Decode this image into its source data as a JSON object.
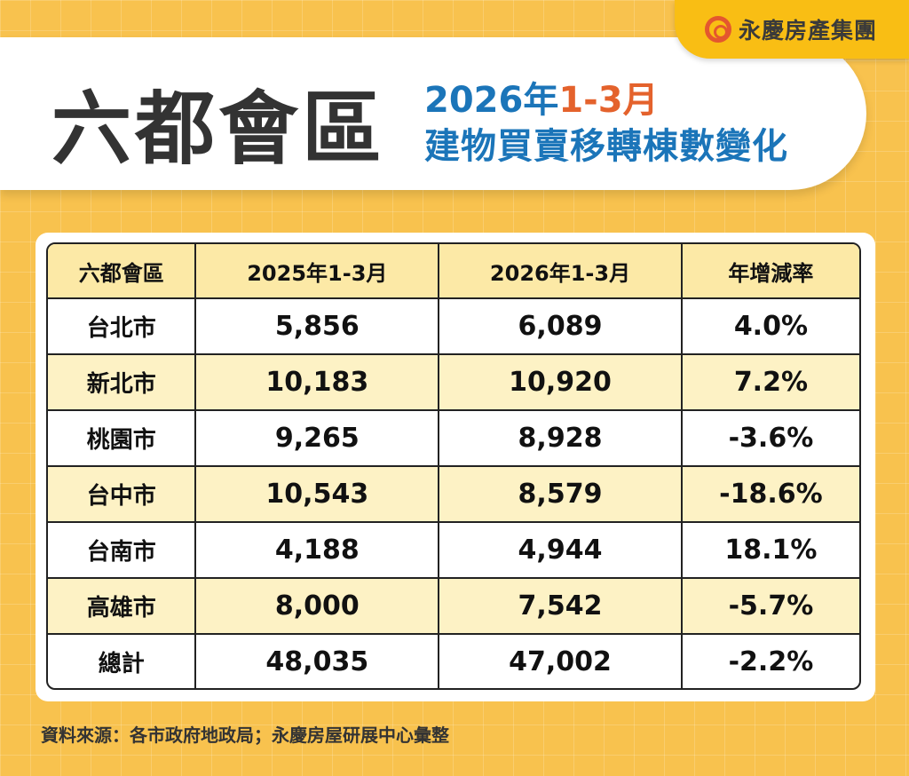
{
  "brand": {
    "logo_text": "永慶房產集團",
    "accent": "#E4572E"
  },
  "header": {
    "title": "六都會區",
    "subtitle_year": "2026年",
    "subtitle_period": "1-3月",
    "subtitle_line2": "建物買賣移轉棟數變化"
  },
  "chart_data": {
    "type": "table",
    "columns": [
      "六都會區",
      "2025年1-3月",
      "2026年1-3月",
      "年增減率"
    ],
    "rows": [
      [
        "台北市",
        "5,856",
        "6,089",
        "4.0%"
      ],
      [
        "新北市",
        "10,183",
        "10,920",
        "7.2%"
      ],
      [
        "桃園市",
        "9,265",
        "8,928",
        "-3.6%"
      ],
      [
        "台中市",
        "10,543",
        "8,579",
        "-18.6%"
      ],
      [
        "台南市",
        "4,188",
        "4,944",
        "18.1%"
      ],
      [
        "高雄市",
        "8,000",
        "7,542",
        "-5.7%"
      ],
      [
        "總計",
        "48,035",
        "47,002",
        "-2.2%"
      ]
    ]
  },
  "footer": {
    "source": "資料來源：各市政府地政局；永慶房屋研展中心彙整"
  },
  "colors": {
    "background": "#F8C24E",
    "title_blue": "#1B75B9",
    "title_orange": "#E4622C",
    "header_row": "#FCE9A6",
    "alt_row": "#FDF2C5"
  }
}
